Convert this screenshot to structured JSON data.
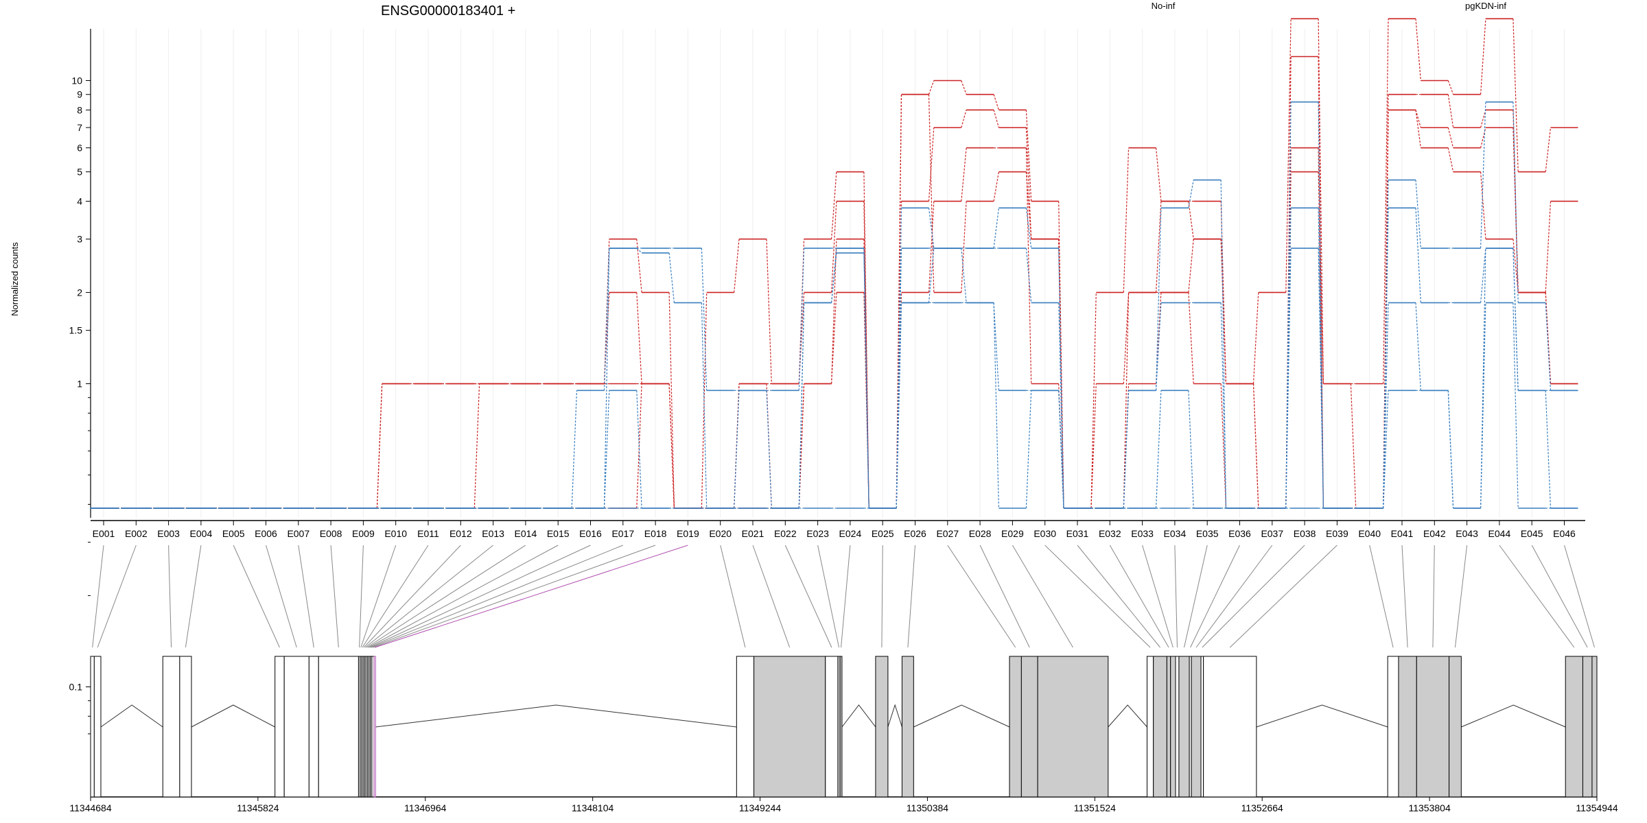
{
  "chart_data": {
    "type": "line",
    "title": "ENSG00000183401 +",
    "ylabel": "Normalized counts",
    "yscale": "log",
    "ylim": [
      0.065,
      22
    ],
    "ytick_labels": [
      "0.1",
      "1",
      "1.5",
      "2",
      "3",
      "4",
      "5",
      "6",
      "7",
      "8",
      "9",
      "10"
    ],
    "ytick_values": [
      0.1,
      1,
      1.5,
      2,
      3,
      4,
      5,
      6,
      7,
      8,
      9,
      10
    ],
    "legend_placement": "top",
    "colors": {
      "No-inf": "#cc2222",
      "pgKDN-inf": "#3a7fbf",
      "highlight": "#b04fb0",
      "exon_fill": "#cccccc"
    },
    "categories": [
      "E001",
      "E002",
      "E003",
      "E004",
      "E005",
      "E006",
      "E007",
      "E008",
      "E009",
      "E010",
      "E011",
      "E012",
      "E013",
      "E014",
      "E015",
      "E016",
      "E017",
      "E018",
      "E019",
      "E020",
      "E021",
      "E022",
      "E023",
      "E024",
      "E025",
      "E026",
      "E027",
      "E028",
      "E029",
      "E030",
      "E031",
      "E032",
      "E033",
      "E034",
      "E035",
      "E036",
      "E037",
      "E038",
      "E039",
      "E040",
      "E041",
      "E042",
      "E043",
      "E044",
      "E045",
      "E046"
    ],
    "groups": [
      {
        "name": "No-inf",
        "samples": [
          [
            0,
            0,
            0,
            0,
            0,
            0,
            0,
            0,
            0,
            1,
            1,
            1,
            1,
            1,
            1,
            1,
            3,
            2,
            0,
            2,
            3,
            1,
            3,
            5,
            0,
            9,
            10,
            9,
            8,
            4,
            0,
            2,
            6,
            4,
            4,
            1,
            2,
            16,
            1,
            1,
            16,
            10,
            9,
            16,
            5,
            7
          ],
          [
            0,
            0,
            0,
            0,
            0,
            0,
            0,
            0,
            0,
            1,
            1,
            1,
            1,
            1,
            1,
            1,
            2,
            1,
            0,
            0,
            1,
            1,
            2,
            4,
            0,
            4,
            7,
            8,
            7,
            3,
            0,
            1,
            2,
            4,
            3,
            1,
            0,
            6,
            0,
            0,
            9,
            9,
            7,
            8,
            2,
            4
          ],
          [
            0,
            0,
            0,
            0,
            0,
            0,
            0,
            0,
            0,
            0,
            0,
            0,
            1,
            1,
            1,
            1,
            1,
            1,
            0,
            0,
            1,
            0,
            1,
            3,
            0,
            2,
            4,
            6,
            6,
            1,
            0,
            0,
            2,
            2,
            1,
            0,
            0,
            5,
            1,
            0,
            8,
            7,
            6,
            7,
            2,
            1
          ],
          [
            0,
            0,
            0,
            0,
            0,
            0,
            0,
            0,
            0,
            0,
            0,
            0,
            0,
            0,
            0,
            0,
            0,
            1,
            0,
            0,
            0,
            0,
            1,
            2,
            0,
            9,
            2,
            4,
            5,
            3,
            0,
            0,
            1,
            2,
            3,
            1,
            0,
            12,
            0,
            0,
            8,
            6,
            5,
            3,
            2,
            1
          ]
        ]
      },
      {
        "name": "pgKDN-inf",
        "samples": [
          [
            0,
            0,
            0,
            0,
            0,
            0,
            0,
            0,
            0,
            0,
            0,
            0,
            0,
            0,
            0,
            0,
            2.8,
            2.8,
            2.8,
            0.95,
            0.95,
            0.95,
            2.8,
            2.8,
            0,
            3.8,
            2.8,
            2.8,
            3.8,
            2.8,
            0,
            0,
            0.95,
            3.8,
            4.7,
            0,
            0,
            8.5,
            0,
            0,
            4.7,
            2.8,
            2.8,
            8.5,
            1.85,
            0.95
          ],
          [
            0,
            0,
            0,
            0,
            0,
            0,
            0,
            0,
            0,
            0,
            0,
            0,
            0,
            0,
            0,
            0.95,
            2.8,
            2.7,
            1.85,
            0,
            0,
            0,
            1.85,
            2.8,
            0,
            2.8,
            2.8,
            2.8,
            2.8,
            1.85,
            0,
            0,
            0.95,
            1.85,
            1.85,
            0,
            0,
            3.8,
            0,
            0,
            3.8,
            1.85,
            1.85,
            2.8,
            0.95,
            0.95
          ],
          [
            0,
            0,
            0,
            0,
            0,
            0,
            0,
            0,
            0,
            0,
            0,
            0,
            0,
            0,
            0,
            0,
            0.95,
            0,
            0,
            0,
            0.95,
            0,
            1.85,
            2.7,
            0,
            1.85,
            1.85,
            1.85,
            0.95,
            0.95,
            0,
            0,
            0,
            0.95,
            0,
            0,
            0,
            2.8,
            0,
            0,
            1.85,
            0.95,
            0,
            1.85,
            0,
            0
          ],
          [
            0,
            0,
            0,
            0,
            0,
            0,
            0,
            0,
            0,
            0,
            0,
            0,
            0,
            0,
            0,
            0,
            0,
            0,
            0,
            0,
            0,
            0,
            0,
            0,
            0,
            1.85,
            2.8,
            1.85,
            0,
            0.95,
            0,
            0,
            0,
            0,
            0,
            0,
            0,
            0,
            0,
            0,
            0.95,
            0.95,
            0,
            2.8,
            0.95,
            0
          ]
        ]
      }
    ],
    "gene_model": {
      "coordinate_labels": [
        "11344684",
        "11345824",
        "11346964",
        "11348104",
        "11349244",
        "11350384",
        "11351524",
        "11352664",
        "11353804",
        "11354944"
      ],
      "coordinate_values": [
        11344684,
        11345824,
        11346964,
        11348104,
        11349244,
        11350384,
        11351524,
        11352664,
        11353804,
        11354944
      ],
      "range": [
        11344684,
        11354944
      ],
      "highlighted_exon": "E019",
      "exons": [
        {
          "id": "E001",
          "start": 11344684,
          "end": 11344709,
          "filled": false
        },
        {
          "id": "E002",
          "start": 11344709,
          "end": 11344754,
          "filled": false
        },
        {
          "id": "E003",
          "start": 11345176,
          "end": 11345291,
          "filled": false
        },
        {
          "id": "E004",
          "start": 11345291,
          "end": 11345371,
          "filled": false
        },
        {
          "id": "E005",
          "start": 11345940,
          "end": 11346003,
          "filled": false
        },
        {
          "id": "E006",
          "start": 11346003,
          "end": 11346172,
          "filled": false
        },
        {
          "id": "E007",
          "start": 11346172,
          "end": 11346237,
          "filled": false
        },
        {
          "id": "E008",
          "start": 11346237,
          "end": 11346509,
          "filled": false
        },
        {
          "id": "E009",
          "start": 11346509,
          "end": 11346520,
          "filled": false
        },
        {
          "id": "E010",
          "start": 11346520,
          "end": 11346530,
          "filled": false
        },
        {
          "id": "E011",
          "start": 11346530,
          "end": 11346540,
          "filled": false
        },
        {
          "id": "E012",
          "start": 11346540,
          "end": 11346550,
          "filled": false
        },
        {
          "id": "E013",
          "start": 11346550,
          "end": 11346560,
          "filled": false
        },
        {
          "id": "E014",
          "start": 11346560,
          "end": 11346570,
          "filled": false
        },
        {
          "id": "E015",
          "start": 11346570,
          "end": 11346580,
          "filled": false
        },
        {
          "id": "E016",
          "start": 11346580,
          "end": 11346590,
          "filled": false
        },
        {
          "id": "E017",
          "start": 11346590,
          "end": 11346600,
          "filled": false
        },
        {
          "id": "E018",
          "start": 11346600,
          "end": 11346615,
          "filled": false
        },
        {
          "id": "E019",
          "start": 11346615,
          "end": 11346625,
          "filled": false
        },
        {
          "id": "E020",
          "start": 11349084,
          "end": 11349202,
          "filled": false
        },
        {
          "id": "E021",
          "start": 11349202,
          "end": 11349689,
          "filled": true
        },
        {
          "id": "E022",
          "start": 11349689,
          "end": 11349774,
          "filled": false
        },
        {
          "id": "E023",
          "start": 11349774,
          "end": 11349789,
          "filled": true
        },
        {
          "id": "E024",
          "start": 11349789,
          "end": 11349802,
          "filled": true
        },
        {
          "id": "E025",
          "start": 11350031,
          "end": 11350115,
          "filled": true
        },
        {
          "id": "E026",
          "start": 11350211,
          "end": 11350290,
          "filled": true
        },
        {
          "id": "E027",
          "start": 11350943,
          "end": 11351024,
          "filled": true
        },
        {
          "id": "E028",
          "start": 11351024,
          "end": 11351135,
          "filled": true
        },
        {
          "id": "E029",
          "start": 11351135,
          "end": 11351615,
          "filled": true
        },
        {
          "id": "E030",
          "start": 11351880,
          "end": 11351923,
          "filled": false
        },
        {
          "id": "E031",
          "start": 11351923,
          "end": 11352015,
          "filled": true
        },
        {
          "id": "E032",
          "start": 11352015,
          "end": 11352040,
          "filled": true
        },
        {
          "id": "E033",
          "start": 11352040,
          "end": 11352074,
          "filled": true
        },
        {
          "id": "E034",
          "start": 11352074,
          "end": 11352097,
          "filled": false
        },
        {
          "id": "E035",
          "start": 11352097,
          "end": 11352168,
          "filled": true
        },
        {
          "id": "E036",
          "start": 11352168,
          "end": 11352182,
          "filled": false
        },
        {
          "id": "E037",
          "start": 11352182,
          "end": 11352247,
          "filled": true
        },
        {
          "id": "E038",
          "start": 11352247,
          "end": 11352264,
          "filled": false
        },
        {
          "id": "E039",
          "start": 11352264,
          "end": 11352625,
          "filled": false
        },
        {
          "id": "E040",
          "start": 11353519,
          "end": 11353593,
          "filled": false
        },
        {
          "id": "E041",
          "start": 11353593,
          "end": 11353716,
          "filled": true
        },
        {
          "id": "E042",
          "start": 11353716,
          "end": 11353937,
          "filled": true
        },
        {
          "id": "E043",
          "start": 11353937,
          "end": 11354020,
          "filled": true
        },
        {
          "id": "E044",
          "start": 11354730,
          "end": 11354848,
          "filled": true
        },
        {
          "id": "E045",
          "start": 11354848,
          "end": 11354911,
          "filled": true
        },
        {
          "id": "E046",
          "start": 11354911,
          "end": 11354944,
          "filled": true
        }
      ],
      "introns": [
        [
          11344754,
          11345176
        ],
        [
          11345371,
          11345940
        ],
        [
          11346625,
          11349084
        ],
        [
          11349802,
          11350031
        ],
        [
          11350115,
          11350211
        ],
        [
          11350290,
          11350943
        ],
        [
          11351615,
          11351880
        ],
        [
          11352625,
          11353519
        ],
        [
          11354020,
          11354730
        ]
      ]
    }
  }
}
